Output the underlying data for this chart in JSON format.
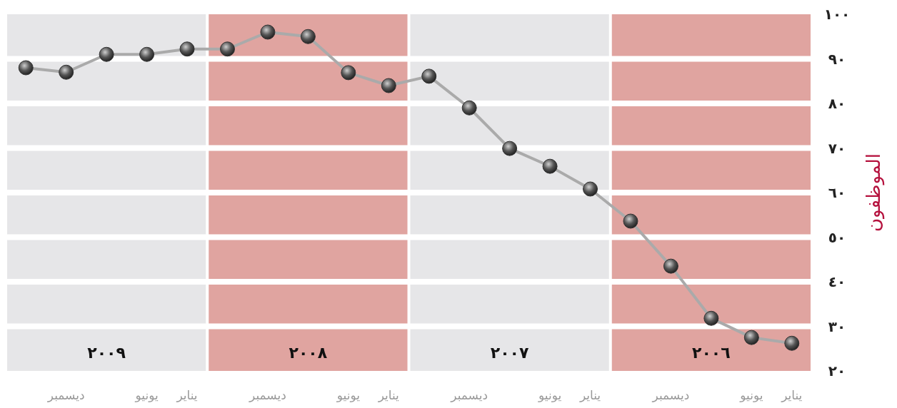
{
  "chart_data": {
    "type": "line",
    "ylabel": "الموظفون",
    "categories": [
      null,
      "ديسمبر",
      null,
      "يونيو",
      "يناير",
      null,
      "ديسمبر",
      null,
      "يونيو",
      "يناير",
      null,
      "ديسمبر",
      null,
      "يونيو",
      "يناير",
      null,
      "ديسمبر",
      null,
      "يونيو",
      "يناير"
    ],
    "series": [
      {
        "color": "#aaaaaa",
        "values": [
          88,
          87,
          91,
          91,
          92.2,
          92.2,
          96,
          95,
          86.9,
          84,
          86.1,
          79,
          69.9,
          65.9,
          60.8,
          53.6,
          43.5,
          31.8,
          27.5,
          26.2
        ]
      }
    ],
    "ylim": [
      20,
      100
    ],
    "yticks": [
      {
        "value": 20,
        "label": "٢٠"
      },
      {
        "value": 30,
        "label": "٣٠"
      },
      {
        "value": 40,
        "label": "٤٠"
      },
      {
        "value": 50,
        "label": "٥٠"
      },
      {
        "value": 60,
        "label": "٦٠"
      },
      {
        "value": 70,
        "label": "٧٠"
      },
      {
        "value": 80,
        "label": "٨٠"
      },
      {
        "value": 90,
        "label": "٩٠"
      },
      {
        "value": 100,
        "label": "١٠٠"
      }
    ],
    "annotations": [
      "٢٠٠٩",
      "٢٠٠٨",
      "٢٠٠٧",
      "٢٠٠٦"
    ],
    "grid": "y",
    "marker": "circle",
    "line_style": "solid"
  }
}
